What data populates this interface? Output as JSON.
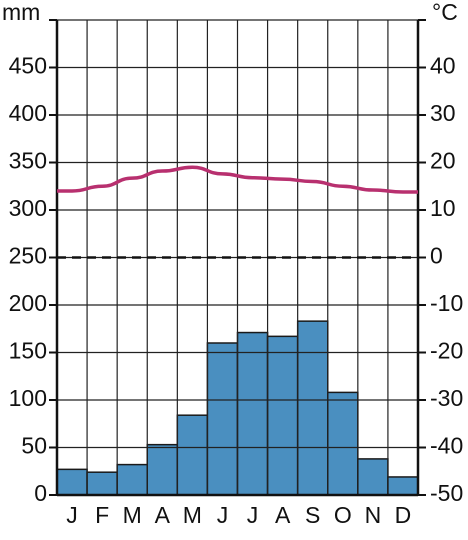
{
  "chart_data": {
    "type": "combo",
    "y_label": "mm",
    "y2_label": "°C",
    "categories": [
      "J",
      "F",
      "M",
      "A",
      "M",
      "J",
      "J",
      "A",
      "S",
      "O",
      "N",
      "D"
    ],
    "series": [
      {
        "type": "bar",
        "color": "#4a8fc0",
        "values": [
          27,
          24,
          32,
          53,
          84,
          160,
          171,
          167,
          183,
          108,
          38,
          19
        ]
      },
      {
        "type": "line",
        "color": "#b8306f",
        "axis": "y2",
        "values": [
          14,
          15,
          16.7,
          18.2,
          19,
          17.6,
          16.8,
          16.5,
          16,
          15,
          14.2,
          13.8
        ]
      }
    ],
    "ylim": [
      0,
      500
    ],
    "yticks": [
      0,
      50,
      100,
      150,
      200,
      250,
      300,
      350,
      400,
      450
    ],
    "y2lim": [
      -50,
      50
    ],
    "y2ticks": [
      -50,
      -40,
      -30,
      -20,
      -10,
      0,
      10,
      20,
      30,
      40
    ],
    "grid": true
  }
}
